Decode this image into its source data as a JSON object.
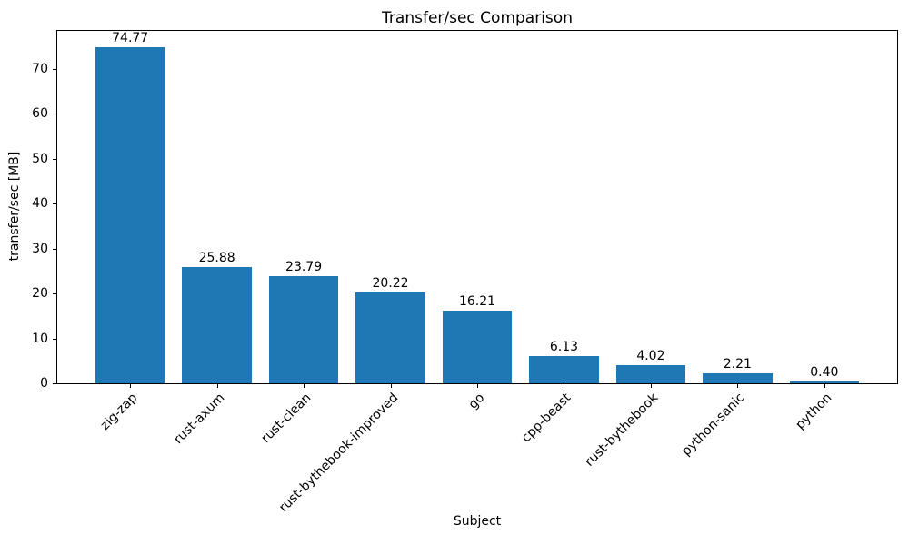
{
  "figure": {
    "background_color": "#ffffff",
    "text_color": "#000000",
    "spine_color": "#000000"
  },
  "chart_data": {
    "type": "bar",
    "title": "Transfer/sec Comparison",
    "xlabel": "Subject",
    "ylabel": "transfer/sec [MB]",
    "categories": [
      "zig-zap",
      "rust-axum",
      "rust-clean",
      "rust-bythebook-improved",
      "go",
      "cpp-beast",
      "rust-bythebook",
      "python-sanic",
      "python"
    ],
    "values": [
      74.77,
      25.88,
      23.79,
      20.22,
      16.21,
      6.13,
      4.02,
      2.21,
      0.4
    ],
    "value_labels": [
      "74.77",
      "25.88",
      "23.79",
      "20.22",
      "16.21",
      "6.13",
      "4.02",
      "2.21",
      "0.40"
    ],
    "bar_color": "#1f77b4",
    "ylim": [
      0,
      78.5
    ],
    "yticks": [
      0,
      10,
      20,
      30,
      40,
      50,
      60,
      70
    ],
    "ytick_labels": [
      "0",
      "10",
      "20",
      "30",
      "40",
      "50",
      "60",
      "70"
    ],
    "xtick_rotation": 45,
    "grid": false,
    "legend": "none"
  }
}
